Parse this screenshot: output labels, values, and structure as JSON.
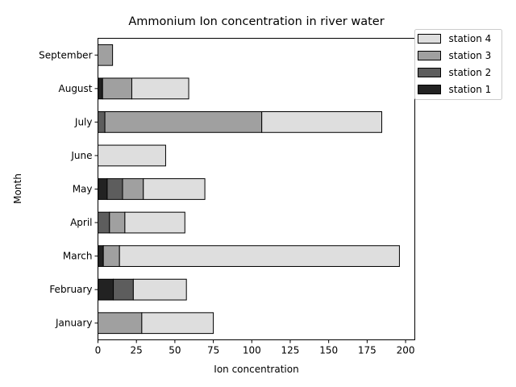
{
  "chart_data": {
    "type": "bar",
    "orientation": "horizontal",
    "stacked": true,
    "title": "Ammonium Ion concentration in river water",
    "xlabel": "Ion concentration",
    "ylabel": "Month",
    "xlim": [
      0,
      206
    ],
    "xticks": [
      0,
      25,
      50,
      75,
      100,
      125,
      150,
      175,
      200
    ],
    "categories": [
      "January",
      "February",
      "March",
      "April",
      "May",
      "June",
      "July",
      "August",
      "September"
    ],
    "series": [
      {
        "name": "station 1",
        "color": "#222222",
        "values": [
          0,
          10,
          3.5,
          0,
          6,
          0,
          0,
          3,
          0
        ]
      },
      {
        "name": "station 2",
        "color": "#5d5d5d",
        "values": [
          0,
          13,
          0,
          7.5,
          10,
          0,
          4.5,
          0,
          0
        ]
      },
      {
        "name": "station 3",
        "color": "#a0a0a0",
        "values": [
          28.5,
          0,
          10.5,
          10,
          13.5,
          0,
          102,
          19,
          9.5
        ]
      },
      {
        "name": "station 4",
        "color": "#dedede",
        "values": [
          46.5,
          34.5,
          182,
          39,
          40,
          44,
          78,
          37,
          0
        ]
      }
    ],
    "legend": {
      "position": "upper-right-outside",
      "order": [
        "station 4",
        "station 3",
        "station 2",
        "station 1"
      ]
    },
    "grid": false
  }
}
